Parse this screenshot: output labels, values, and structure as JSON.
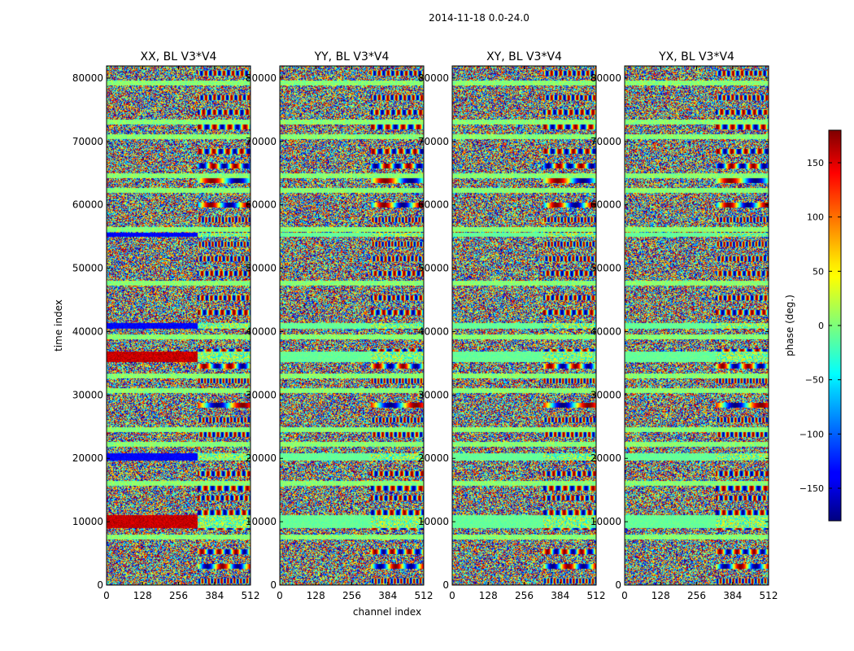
{
  "chart_data": {
    "type": "heatmap",
    "suptitle": "2014-11-18 0.0-24.0",
    "xlabel": "channel index",
    "ylabel": "time index",
    "xlim": [
      0,
      512
    ],
    "ylim": [
      0,
      81920
    ],
    "xticks": [
      0,
      128,
      256,
      384,
      512
    ],
    "yticks": [
      0,
      10000,
      20000,
      30000,
      40000,
      50000,
      60000,
      70000,
      80000
    ],
    "panels": [
      {
        "title": "XX, BL V3*V4",
        "pol": "XX"
      },
      {
        "title": "YY, BL V3*V4",
        "pol": "YY"
      },
      {
        "title": "XY, BL V3*V4",
        "pol": "XY"
      },
      {
        "title": "YX, BL V3*V4",
        "pol": "YX"
      }
    ],
    "colorbar": {
      "label": "phase (deg.)",
      "range": [
        -180,
        180
      ],
      "ticks": [
        150,
        100,
        50,
        0,
        -50,
        -100,
        -150
      ],
      "tick_labels": [
        "150",
        "100",
        "50",
        "0",
        "−50",
        "−100",
        "−150"
      ],
      "colormap": "jet"
    }
  }
}
